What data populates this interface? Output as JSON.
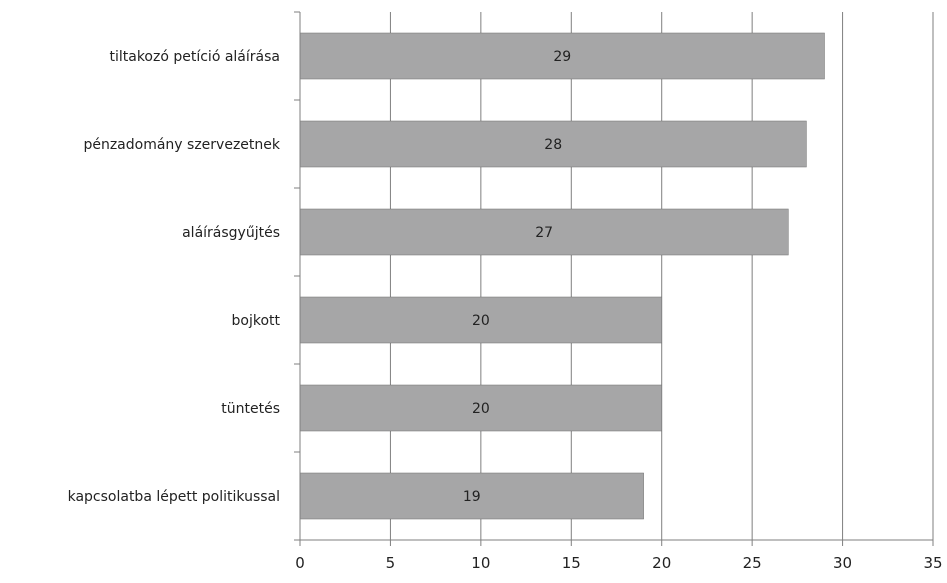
{
  "chart_data": {
    "type": "bar",
    "orientation": "horizontal",
    "categories": [
      "tiltakozó petíció aláírása",
      "pénzadomány szervezetnek",
      "aláírásgyűjtés",
      "bojkott",
      "tüntetés",
      "kapcsolatba lépett politikussal"
    ],
    "values": [
      29,
      28,
      27,
      20,
      20,
      19
    ],
    "data_labels": [
      "29",
      "28",
      "27",
      "20",
      "20",
      "19"
    ],
    "xticks": [
      "0",
      "5",
      "10",
      "15",
      "20",
      "25",
      "30",
      "35"
    ],
    "xlim": [
      0,
      35
    ],
    "title": "",
    "xlabel": "",
    "ylabel": "",
    "grid": true,
    "legend": "none",
    "bar_color": "#a6a6a7",
    "bar_edge_color": "#6e6e6e",
    "grid_color": "#7f7f7f"
  }
}
